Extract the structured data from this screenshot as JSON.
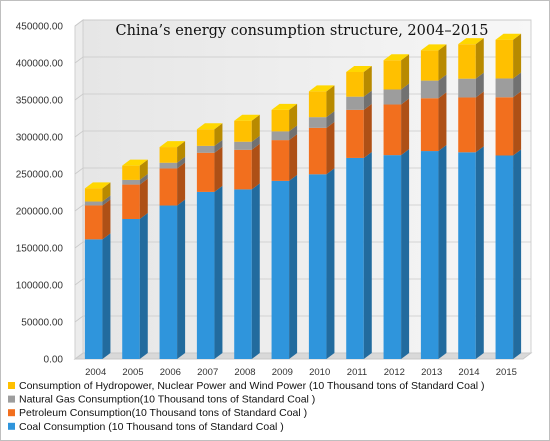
{
  "chart_data": {
    "type": "bar",
    "stacked": true,
    "style": "3d-column",
    "title": "China’s energy consumption structure, 2004–2015",
    "categories": [
      "2004",
      "2005",
      "2006",
      "2007",
      "2008",
      "2009",
      "2010",
      "2011",
      "2012",
      "2013",
      "2014",
      "2015"
    ],
    "ylim": [
      0,
      450000
    ],
    "yticks": [
      "0.00",
      "50000.00",
      "100000.00",
      "150000.00",
      "200000.00",
      "250000.00",
      "300000.00",
      "350000.00",
      "400000.00",
      "450000.00"
    ],
    "grid": true,
    "legend_position": "bottom",
    "series": [
      {
        "name": "Coal Consumption (10 Thousand tons of Standard Coal )",
        "color": "#2f95dc",
        "values": [
          161700,
          189200,
          207400,
          225800,
          229200,
          240700,
          249600,
          271700,
          275500,
          280999,
          279329,
          275000
        ]
      },
      {
        "name": "Petroleum Consumption(10 Thousand tons of Standard Coal )",
        "color": "#f26f1e",
        "values": [
          45800,
          46500,
          50100,
          52900,
          53500,
          55100,
          62800,
          65000,
          68400,
          71400,
          74100,
          78700
        ]
      },
      {
        "name": "Natural Gas Consumption(10 Thousand tons of Standard Coal )",
        "color": "#9d9d9d",
        "values": [
          5300,
          6300,
          7700,
          9300,
          10900,
          11800,
          14400,
          17800,
          20300,
          23800,
          25400,
          25400
        ]
      },
      {
        "name": "Consumption of Hydropower, Nuclear Power and  Wind Power  (10 Thousand tons of Standard Coal )",
        "color": "#ffc000",
        "values": [
          17800,
          19300,
          21200,
          22500,
          28400,
          29000,
          34800,
          33400,
          39500,
          40800,
          46600,
          52400
        ]
      }
    ]
  }
}
